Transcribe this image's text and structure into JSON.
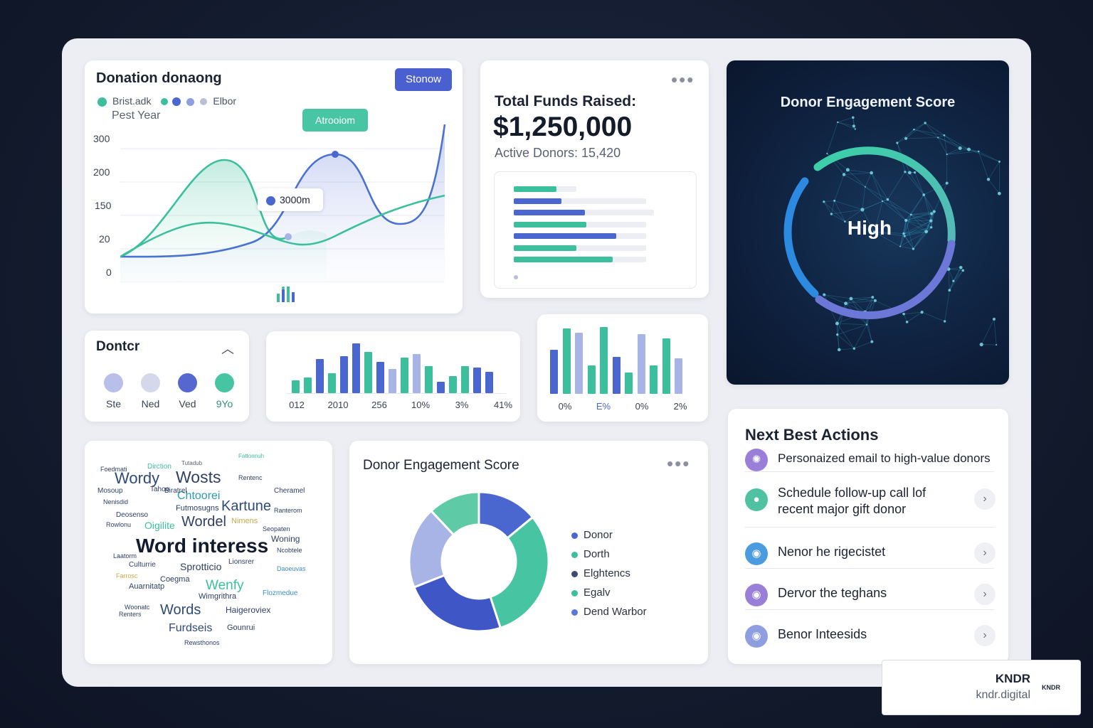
{
  "donation_chart": {
    "title": "Donation donaong",
    "button_label": "Stonow",
    "legend_a": "Brist.adk",
    "legend_b": "Elbor",
    "subtitle": "Pest Year",
    "callout_top": "Atrooiom",
    "callout_mid": "3000m",
    "y_ticks": [
      "300",
      "200",
      "150",
      "20",
      "0"
    ],
    "colors": {
      "teal": "#3bbf9c",
      "blue": "#4a67d0",
      "lavender": "#a9b4e6"
    }
  },
  "funds": {
    "title": "Total Funds Raised:",
    "amount": "$1,250,000",
    "active_donors": "Active Donors: 15,420",
    "bars": [
      {
        "value": 0.26,
        "track": 0.38,
        "color": "#3bbf9c"
      },
      {
        "value": 0.29,
        "track": 0.8,
        "color": "#4a67d0"
      },
      {
        "value": 0.43,
        "track": 0.85,
        "color": "#4a67d0"
      },
      {
        "value": 0.44,
        "track": 0.8,
        "color": "#3bbf9c"
      },
      {
        "value": 0.62,
        "track": 0.8,
        "color": "#4a67d0"
      },
      {
        "value": 0.38,
        "track": 0.8,
        "color": "#3bbf9c"
      },
      {
        "value": 0.6,
        "track": 0.8,
        "color": "#3bbf9c"
      }
    ]
  },
  "engagement_ring": {
    "title": "Donor Engagement Score",
    "value_label": "High"
  },
  "donor_filter": {
    "title": "Dontcr",
    "items": [
      {
        "label": "Ste",
        "color": "#b8bfe8"
      },
      {
        "label": "Ned",
        "color": "#d4d8ea"
      },
      {
        "label": "Ved",
        "color": "#5668cf"
      },
      {
        "label": "9Yo",
        "color": "#47c4a1"
      }
    ]
  },
  "bar_chart_a": {
    "x_labels": [
      "012",
      "2010",
      "256",
      "10%",
      "3%",
      "41%"
    ],
    "values": [
      18,
      22,
      48,
      28,
      52,
      70,
      58,
      44,
      34,
      50,
      55,
      38,
      16,
      24,
      38,
      36,
      30
    ],
    "colors": [
      "#3bbf9c",
      "#3bbf9c",
      "#4a67d0",
      "#3bbf9c",
      "#4a67d0",
      "#4a67d0",
      "#3bbf9c",
      "#4a67d0",
      "#a9b4e6",
      "#3bbf9c",
      "#a9b4e6",
      "#3bbf9c",
      "#4a67d0",
      "#3bbf9c",
      "#3bbf9c",
      "#4a67d0",
      "#4a67d0"
    ]
  },
  "bar_chart_b": {
    "x_labels": [
      "0%",
      "E%",
      "0%",
      "2%"
    ],
    "values": [
      62,
      92,
      86,
      40,
      94,
      52,
      30,
      84,
      40,
      78,
      50
    ],
    "colors": [
      "#4a67d0",
      "#3bbf9c",
      "#a9b4e6",
      "#3bbf9c",
      "#3bbf9c",
      "#4a67d0",
      "#3bbf9c",
      "#a9b4e6",
      "#3bbf9c",
      "#3bbf9c",
      "#a9b4e6"
    ]
  },
  "word_cloud": {
    "headline": "Word interess",
    "words": [
      "Wordy",
      "Wosts",
      "Chtoorei",
      "Kartune",
      "Wordel",
      "Oigilite",
      "Word interess",
      "Sprotticio",
      "Wenfy",
      "Words",
      "Furdseis",
      "Haigeroviex",
      "Fattonnuh",
      "Biratrel",
      "Mosoup",
      "Tahoo",
      "Dirction",
      "Tutadub",
      "Futmosugns",
      "Nimens",
      "Woning",
      "Wimgrithra",
      "Culturrie",
      "Coegma",
      "Auarnitatp",
      "Flozmedue",
      "Gounrui",
      "Rewsthonos",
      "Rentenc",
      "Daoeuvas",
      "Cheramel",
      "Foedmati",
      "Nenisdid",
      "Ranterom",
      "Deosenso",
      "Seopaten",
      "Ncobtele",
      "Rowlonu",
      "Renters",
      "Laatorm",
      "Lionsrer",
      "Farrosc",
      "Woonatc"
    ]
  },
  "donut": {
    "title": "Donor Engagement Score",
    "legend": [
      {
        "label": "Donor",
        "color": "#4a67d0"
      },
      {
        "label": "Dorth",
        "color": "#3bbf9c"
      },
      {
        "label": "Elghtencs",
        "color": "#3d4a6e"
      },
      {
        "label": "Egalv",
        "color": "#3bbf9c"
      },
      {
        "label": "Dend Warbor",
        "color": "#5a78dc"
      }
    ]
  },
  "chart_data": {
    "type": "pie",
    "categories": [
      "Blue",
      "Teal",
      "Dark blue",
      "Lavender",
      "Light teal"
    ],
    "values": [
      14,
      31,
      24,
      19,
      12
    ],
    "title": "Donor Engagement Score"
  },
  "actions": {
    "title": "Next Best Actions",
    "items": [
      {
        "text": "Personaized email to high-value donors",
        "icon": "brain-icon",
        "color": "#9a7fd8"
      },
      {
        "text": "Schedule follow-up call lof recent major gift donor",
        "icon": "user-icon",
        "color": "#4fc3a1"
      },
      {
        "text": "Nenor he rigecistet",
        "icon": "users-icon",
        "color": "#4a9be0"
      },
      {
        "text": "Dervor the teghans",
        "icon": "users-icon",
        "color": "#9a7fd8"
      },
      {
        "text": "Benor Inteesids",
        "icon": "users-icon",
        "color": "#8e9ee0"
      }
    ]
  },
  "watermark": {
    "brand": "KNDR",
    "domain": "kndr.digital",
    "logo": "KNDR"
  }
}
